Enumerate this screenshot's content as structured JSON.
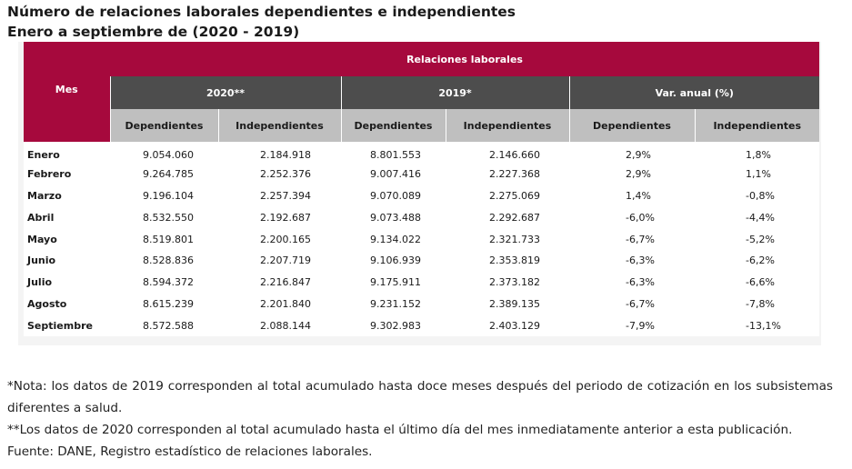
{
  "title": "Número de relaciones laborales dependientes e independientes",
  "subtitle": "Enero a septiembre de (2020 - 2019)",
  "table": {
    "banner": "Relaciones laborales",
    "mes_header": "Mes",
    "groups": [
      "2020**",
      "2019*",
      "Var. anual (%)"
    ],
    "subheaders": [
      "Dependientes",
      "Independientes",
      "Dependientes",
      "Independientes",
      "Dependientes",
      "Independientes"
    ],
    "rows": [
      {
        "mes": "Enero",
        "v": [
          "9.054.060",
          "2.184.918",
          "8.801.553",
          "2.146.660",
          "2,9%",
          "1,8%"
        ]
      },
      {
        "mes": "Febrero",
        "v": [
          "9.264.785",
          "2.252.376",
          "9.007.416",
          "2.227.368",
          "2,9%",
          "1,1%"
        ]
      },
      {
        "mes": "Marzo",
        "v": [
          "9.196.104",
          "2.257.394",
          "9.070.089",
          "2.275.069",
          "1,4%",
          "-0,8%"
        ]
      },
      {
        "mes": "Abril",
        "v": [
          "8.532.550",
          "2.192.687",
          "9.073.488",
          "2.292.687",
          "-6,0%",
          "-4,4%"
        ]
      },
      {
        "mes": "Mayo",
        "v": [
          "8.519.801",
          "2.200.165",
          "9.134.022",
          "2.321.733",
          "-6,7%",
          "-5,2%"
        ]
      },
      {
        "mes": "Junio",
        "v": [
          "8.528.836",
          "2.207.719",
          "9.106.939",
          "2.353.819",
          "-6,3%",
          "-6,2%"
        ]
      },
      {
        "mes": "Julio",
        "v": [
          "8.594.372",
          "2.216.847",
          "9.175.911",
          "2.373.182",
          "-6,3%",
          "-6,6%"
        ]
      },
      {
        "mes": "Agosto",
        "v": [
          "8.615.239",
          "2.201.840",
          "9.231.152",
          "2.389.135",
          "-6,7%",
          "-7,8%"
        ]
      },
      {
        "mes": "Septiembre",
        "v": [
          "8.572.588",
          "2.088.144",
          "9.302.983",
          "2.403.129",
          "-7,9%",
          "-13,1%"
        ]
      }
    ]
  },
  "notes": {
    "note1": "*Nota: los datos de 2019 corresponden al total acumulado hasta doce meses después del periodo de cotización en los subsistemas diferentes a salud.",
    "note2": "**Los datos de 2020 corresponden al total acumulado hasta el último día del mes inmediatamente anterior a esta publicación.",
    "source": "Fuente: DANE, Registro estadístico de relaciones laborales."
  },
  "colors": {
    "banner": "#a6093d",
    "group_header": "#4d4d4d",
    "sub_header": "#bfbfbf"
  }
}
